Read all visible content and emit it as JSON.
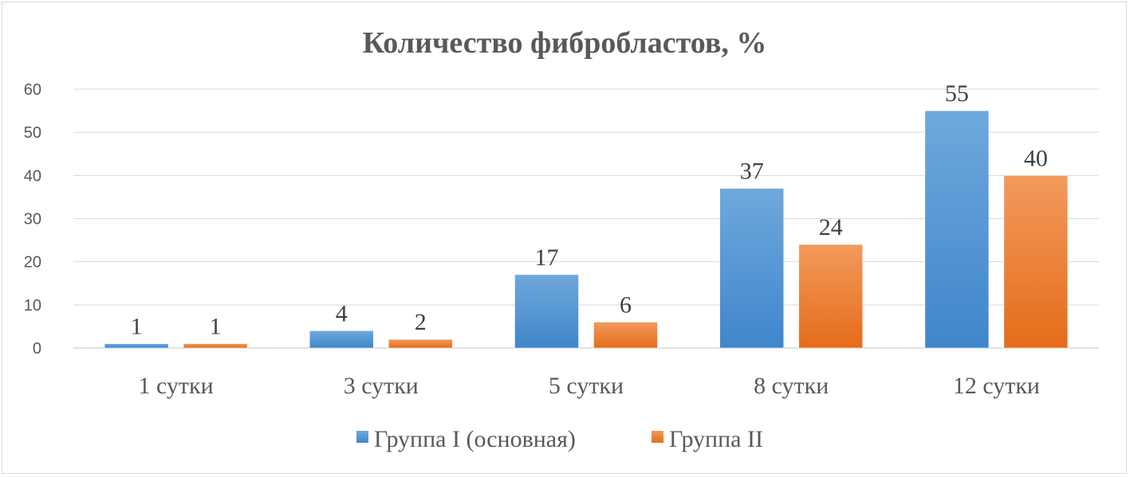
{
  "chart_data": {
    "type": "bar",
    "title": "Количество фибробластов, %",
    "categories": [
      "1 сутки",
      "3 сутки",
      "5 сутки",
      "8 сутки",
      "12 сутки"
    ],
    "series": [
      {
        "name": "Группа I (основная)",
        "values": [
          1,
          4,
          17,
          37,
          55
        ],
        "color": "#5b9bd5"
      },
      {
        "name": "Группа II",
        "values": [
          1,
          2,
          6,
          24,
          40
        ],
        "color": "#ed7d31"
      }
    ],
    "ylim": [
      0,
      60
    ],
    "yticks": [
      0,
      10,
      20,
      30,
      40,
      50,
      60
    ],
    "grid": true,
    "legend": "bottom",
    "data_labels": true
  }
}
